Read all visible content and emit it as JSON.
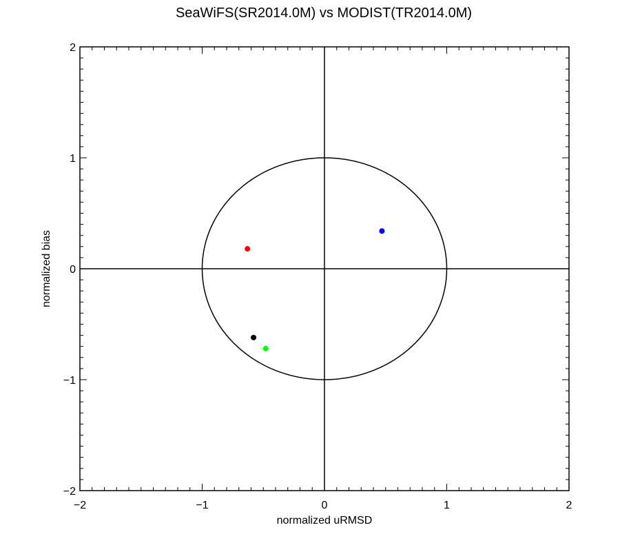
{
  "chart_data": {
    "type": "scatter",
    "title": "SeaWiFS(SR2014.0M) vs MODIST(TR2014.0M)",
    "xlabel": "normalized uRMSD",
    "ylabel": "normalized bias",
    "xlim": [
      -2,
      2
    ],
    "ylim": [
      -2,
      2
    ],
    "xticks": [
      "−2",
      "−1",
      "0",
      "1",
      "2"
    ],
    "yticks": [
      "−2",
      "−1",
      "0",
      "1",
      "2"
    ],
    "reference_circle_radius": 1,
    "grid": false,
    "points": [
      {
        "x": -0.63,
        "y": 0.18,
        "color": "#ff0000"
      },
      {
        "x": 0.47,
        "y": 0.34,
        "color": "#0000ff"
      },
      {
        "x": -0.58,
        "y": -0.62,
        "color": "#000000"
      },
      {
        "x": -0.48,
        "y": -0.72,
        "color": "#00ff00"
      }
    ]
  }
}
